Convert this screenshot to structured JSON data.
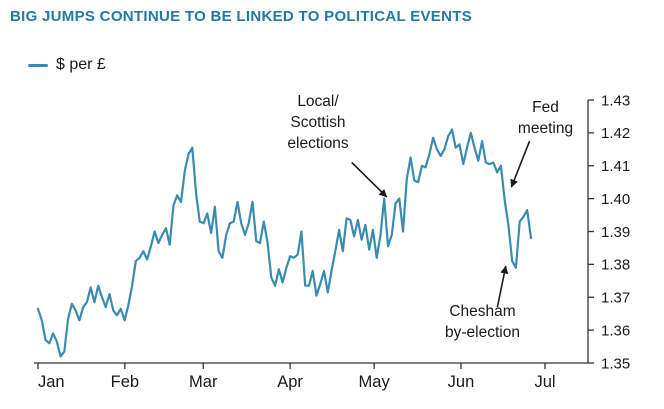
{
  "accent_color": "#2279a5",
  "axis_color": "#333333",
  "chart_data": {
    "type": "line",
    "title": "BIG JUMPS CONTINUE TO BE LINKED TO POLITICAL EVENTS",
    "xlabel": "",
    "ylabel": "",
    "legend_position": "top-left",
    "grid": false,
    "ylim": [
      1.35,
      1.43
    ],
    "y_axis": {
      "side": "right",
      "tick_step": 0.01,
      "tick_labels": [
        "1.35",
        "1.36",
        "1.37",
        "1.38",
        "1.39",
        "1.40",
        "1.41",
        "1.42",
        "1.43"
      ]
    },
    "x_axis": {
      "tick_labels": [
        "Jan",
        "Feb",
        "Mar",
        "Apr",
        "May",
        "Jun",
        "Jul"
      ],
      "tick_days": [
        0,
        31,
        59,
        90,
        120,
        151,
        181
      ],
      "range_days": [
        0,
        181
      ]
    },
    "series": [
      {
        "name": "$ per £",
        "color": "#3a8bb0",
        "day_start": 0,
        "day_end": 176,
        "values": [
          1.3665,
          1.363,
          1.357,
          1.356,
          1.359,
          1.3565,
          1.352,
          1.3535,
          1.3635,
          1.368,
          1.366,
          1.363,
          1.367,
          1.3685,
          1.373,
          1.3685,
          1.3735,
          1.37,
          1.367,
          1.371,
          1.366,
          1.3645,
          1.3665,
          1.363,
          1.3675,
          1.3735,
          1.381,
          1.382,
          1.384,
          1.3815,
          1.3855,
          1.39,
          1.3865,
          1.389,
          1.391,
          1.386,
          1.398,
          1.401,
          1.399,
          1.4085,
          1.4135,
          1.4155,
          1.4015,
          1.393,
          1.3925,
          1.3955,
          1.3895,
          1.3975,
          1.384,
          1.382,
          1.389,
          1.3925,
          1.393,
          1.399,
          1.3925,
          1.389,
          1.3925,
          1.399,
          1.387,
          1.3865,
          1.393,
          1.3865,
          1.376,
          1.3735,
          1.3785,
          1.3745,
          1.379,
          1.3825,
          1.382,
          1.383,
          1.39,
          1.3735,
          1.3735,
          1.378,
          1.3705,
          1.374,
          1.378,
          1.3715,
          1.378,
          1.384,
          1.3905,
          1.384,
          1.394,
          1.3935,
          1.3885,
          1.3935,
          1.3875,
          1.392,
          1.3845,
          1.3905,
          1.382,
          1.389,
          1.4,
          1.3855,
          1.389,
          1.3985,
          1.4,
          1.39,
          1.406,
          1.4125,
          1.4055,
          1.405,
          1.41,
          1.4095,
          1.4135,
          1.4185,
          1.415,
          1.413,
          1.415,
          1.419,
          1.421,
          1.4155,
          1.4165,
          1.4105,
          1.4155,
          1.42,
          1.4155,
          1.4115,
          1.4175,
          1.411,
          1.4105,
          1.411,
          1.408,
          1.41,
          1.3995,
          1.392,
          1.381,
          1.379,
          1.393,
          1.3945,
          1.3965,
          1.388
        ]
      }
    ],
    "annotations": [
      {
        "id": "local-scottish-elections",
        "label": "Local/\nScottish\nelections",
        "arrow_from": {
          "day": 112.0,
          "value": 1.411
        },
        "arrow_to": {
          "day": 124.5,
          "value": 1.4005
        }
      },
      {
        "id": "fed-meeting",
        "label": "Fed\nmeeting",
        "arrow_from": {
          "day": 175.5,
          "value": 1.4175
        },
        "arrow_to": {
          "day": 169.0,
          "value": 1.4035
        }
      },
      {
        "id": "chesham-by-election",
        "label": "Chesham\nby-election",
        "arrow_from": {
          "day": 164.0,
          "value": 1.367
        },
        "arrow_to": {
          "day": 167.0,
          "value": 1.3795
        }
      }
    ]
  }
}
